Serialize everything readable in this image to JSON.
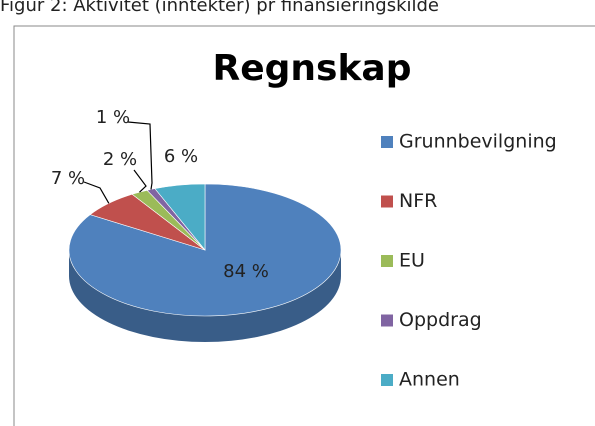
{
  "caption": "Figur 2: Aktivitet (inntekter) pr finansieringskilde",
  "chart_data": {
    "type": "pie",
    "title": "Regnskap",
    "categories": [
      "Grunnbevilgning",
      "NFR",
      "EU",
      "Oppdrag",
      "Annen"
    ],
    "values": [
      84,
      7,
      2,
      1,
      6
    ],
    "value_labels": [
      "84 %",
      "7 %",
      "2 %",
      "1 %",
      "6 %"
    ],
    "colors": [
      "#4f81bd",
      "#c0504d",
      "#9bbb59",
      "#8064a2",
      "#4bacc6"
    ],
    "legend": "right"
  }
}
